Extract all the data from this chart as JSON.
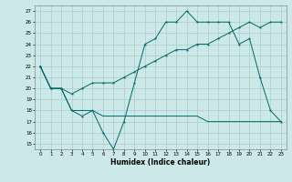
{
  "xlabel": "Humidex (Indice chaleur)",
  "bg_color": "#cce8e8",
  "line_color": "#006868",
  "grid_color": "#aacccc",
  "xlim": [
    -0.5,
    23.5
  ],
  "ylim": [
    14.5,
    27.5
  ],
  "yticks": [
    15,
    16,
    17,
    18,
    19,
    20,
    21,
    22,
    23,
    24,
    25,
    26,
    27
  ],
  "xticks": [
    0,
    1,
    2,
    3,
    4,
    5,
    6,
    7,
    8,
    9,
    10,
    11,
    12,
    13,
    14,
    15,
    16,
    17,
    18,
    19,
    20,
    21,
    22,
    23
  ],
  "line1_x": [
    0,
    1,
    2,
    3,
    4,
    5,
    6,
    7,
    8,
    9,
    10,
    11,
    12,
    13,
    14,
    15,
    16,
    17,
    18,
    19,
    20,
    21,
    22,
    23
  ],
  "line1_y": [
    22,
    20,
    20,
    18,
    17.5,
    18,
    16,
    14.5,
    17,
    20.5,
    24,
    24.5,
    26,
    26,
    27,
    26,
    26,
    26,
    26,
    24,
    24.5,
    21,
    18,
    17
  ],
  "line2_x": [
    0,
    1,
    2,
    3,
    4,
    5,
    6,
    7,
    8,
    9,
    10,
    11,
    12,
    13,
    14,
    15,
    16,
    17,
    18,
    19,
    20,
    21,
    22,
    23
  ],
  "line2_y": [
    22,
    20,
    20,
    19.5,
    20,
    20.5,
    20.5,
    20.5,
    21,
    21.5,
    22,
    22.5,
    23,
    23.5,
    23.5,
    24,
    24,
    24.5,
    25,
    25.5,
    26,
    25.5,
    26,
    26
  ],
  "line3_x": [
    0,
    1,
    2,
    3,
    4,
    5,
    6,
    7,
    8,
    9,
    10,
    11,
    12,
    13,
    14,
    15,
    16,
    17,
    18,
    19,
    20,
    21,
    22,
    23
  ],
  "line3_y": [
    22,
    20,
    20,
    18,
    18,
    18,
    17.5,
    17.5,
    17.5,
    17.5,
    17.5,
    17.5,
    17.5,
    17.5,
    17.5,
    17.5,
    17,
    17,
    17,
    17,
    17,
    17,
    17,
    17
  ]
}
